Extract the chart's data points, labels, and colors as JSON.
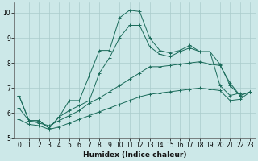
{
  "xlabel": "Humidex (Indice chaleur)",
  "xlim": [
    -0.5,
    23.5
  ],
  "ylim": [
    5,
    10.4
  ],
  "xticks": [
    0,
    1,
    2,
    3,
    4,
    5,
    6,
    7,
    8,
    9,
    10,
    11,
    12,
    13,
    14,
    15,
    16,
    17,
    18,
    19,
    20,
    21,
    22,
    23
  ],
  "yticks": [
    5,
    6,
    7,
    8,
    9,
    10
  ],
  "background_color": "#cce8e8",
  "grid_color": "#aacccc",
  "line_color": "#1a6b5a",
  "lines": [
    {
      "x": [
        0,
        1,
        2,
        3,
        4,
        5,
        6,
        7,
        8,
        9,
        10,
        11,
        12,
        13,
        14,
        15,
        16,
        17,
        18,
        19,
        20,
        21,
        22
      ],
      "y": [
        6.7,
        5.7,
        5.7,
        5.4,
        5.85,
        6.5,
        6.5,
        7.5,
        8.5,
        8.5,
        9.8,
        10.1,
        10.05,
        9.0,
        8.5,
        8.4,
        8.5,
        8.7,
        8.45,
        8.45,
        7.1,
        6.7,
        6.8
      ]
    },
    {
      "x": [
        0,
        1,
        2,
        3,
        4,
        5,
        6,
        7,
        8,
        9,
        10,
        11,
        12,
        13,
        14,
        15,
        16,
        17,
        18,
        19,
        20,
        21,
        22,
        23
      ],
      "y": [
        6.7,
        5.7,
        5.7,
        5.4,
        5.85,
        6.1,
        6.3,
        6.5,
        7.6,
        8.2,
        9.0,
        9.5,
        9.5,
        8.65,
        8.35,
        8.25,
        8.45,
        8.6,
        8.45,
        8.45,
        7.95,
        7.1,
        6.7,
        6.85
      ]
    },
    {
      "x": [
        0,
        1,
        2,
        3,
        4,
        5,
        6,
        7,
        8,
        9,
        10,
        11,
        12,
        13,
        14,
        15,
        16,
        17,
        18,
        19,
        20,
        21,
        22,
        23
      ],
      "y": [
        6.2,
        5.7,
        5.6,
        5.5,
        5.7,
        5.9,
        6.1,
        6.4,
        6.6,
        6.85,
        7.1,
        7.35,
        7.6,
        7.85,
        7.85,
        7.9,
        7.95,
        8.0,
        8.05,
        7.95,
        7.9,
        7.2,
        6.7,
        6.85
      ]
    },
    {
      "x": [
        0,
        1,
        2,
        3,
        4,
        5,
        6,
        7,
        8,
        9,
        10,
        11,
        12,
        13,
        14,
        15,
        16,
        17,
        18,
        19,
        20,
        21,
        22,
        23
      ],
      "y": [
        5.75,
        5.55,
        5.5,
        5.35,
        5.45,
        5.6,
        5.75,
        5.9,
        6.05,
        6.2,
        6.35,
        6.5,
        6.65,
        6.75,
        6.8,
        6.85,
        6.9,
        6.95,
        7.0,
        6.95,
        6.9,
        6.5,
        6.55,
        6.85
      ]
    }
  ]
}
